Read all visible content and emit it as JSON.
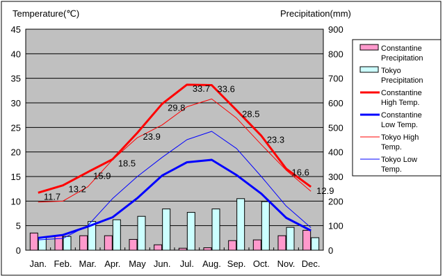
{
  "chart_data": {
    "type": "bar+line",
    "ylabel_left": "Temperature(℃)",
    "ylabel_right": "Precipitation(mm)",
    "ylim_left": [
      0,
      45
    ],
    "ylim_right": [
      0,
      900
    ],
    "yticks_left": [
      "0",
      "5",
      "10",
      "15",
      "20",
      "25",
      "30",
      "35",
      "40",
      "45"
    ],
    "yticks_right": [
      "0",
      "100",
      "200",
      "300",
      "400",
      "500",
      "600",
      "700",
      "800",
      "900"
    ],
    "categories": [
      "Jan.",
      "Feb.",
      "Mar.",
      "Apr.",
      "May",
      "Jun.",
      "Jul.",
      "Aug.",
      "Sep.",
      "Oct.",
      "Nov.",
      "Dec."
    ],
    "grid": true,
    "legend_position": "right",
    "bar_series": [
      {
        "name": "Constantine Precipitation",
        "legend": [
          "Constantine",
          "Precipitation"
        ],
        "color": "#ff99cc",
        "axis": "right",
        "values": [
          70,
          59,
          59,
          59,
          44,
          22,
          8,
          10,
          39,
          42,
          59,
          81
        ]
      },
      {
        "name": "Tokyo Precipitation",
        "legend": [
          "Tokyo",
          "Precipitation"
        ],
        "color": "#ccffff",
        "axis": "right",
        "values": [
          52,
          56,
          117,
          124,
          138,
          168,
          154,
          168,
          210,
          198,
          93,
          51
        ]
      }
    ],
    "line_series": [
      {
        "name": "Constantine High Temp.",
        "legend": [
          "Constantine",
          "High Temp."
        ],
        "color": "#ff0000",
        "width": 3,
        "axis": "left",
        "values": [
          11.7,
          13.2,
          15.9,
          18.5,
          23.9,
          29.8,
          33.7,
          33.6,
          28.5,
          23.3,
          16.6,
          12.9
        ],
        "labels": [
          "11.7",
          "13.2",
          "15.9",
          "18.5",
          "23.9",
          "29.8",
          "33.7",
          "33.6",
          "28.5",
          "23.3",
          "16.6",
          "12.9"
        ]
      },
      {
        "name": "Constantine Low Temp.",
        "legend": [
          "Constantine",
          "Low Temp."
        ],
        "color": "#0000ff",
        "width": 3,
        "axis": "left",
        "values": [
          2.5,
          3.1,
          4.8,
          6.7,
          10.6,
          15.2,
          17.9,
          18.4,
          15.3,
          11.5,
          6.6,
          4.0
        ]
      },
      {
        "name": "Tokyo High Temp.",
        "legend": [
          "Tokyo High",
          "Temp."
        ],
        "color": "#ff0000",
        "width": 1,
        "axis": "left",
        "values": [
          9.8,
          10.0,
          12.9,
          18.4,
          22.9,
          25.5,
          29.2,
          30.8,
          26.9,
          21.5,
          16.3,
          12.0
        ]
      },
      {
        "name": "Tokyo Low Temp.",
        "legend": [
          "Tokyo Low",
          "Temp."
        ],
        "color": "#0000ff",
        "width": 1,
        "axis": "left",
        "values": [
          2.1,
          2.4,
          5.0,
          10.5,
          15.0,
          18.9,
          22.5,
          24.2,
          20.7,
          15.0,
          9.0,
          4.6
        ]
      }
    ]
  }
}
